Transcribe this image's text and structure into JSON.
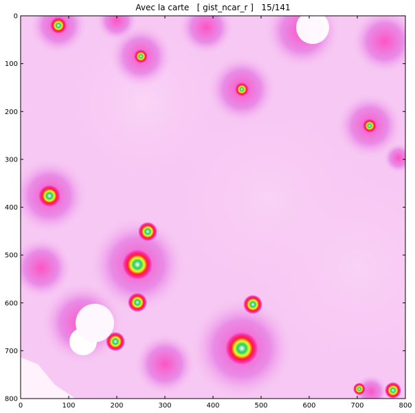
{
  "chart_data": {
    "type": "heatmap",
    "title": "Avec la carte   [ gist_ncar_r ]   15/141",
    "xlabel": "",
    "ylabel": "",
    "xlim": [
      0,
      800
    ],
    "ylim": [
      800,
      0
    ],
    "x_ticks": [
      0,
      100,
      200,
      300,
      400,
      500,
      600,
      700,
      800
    ],
    "y_ticks": [
      0,
      100,
      200,
      300,
      400,
      500,
      600,
      700,
      800
    ],
    "grid": false,
    "colormap": "gist_ncar_r",
    "colors": {
      "background_low": "#f7c8f3",
      "magenta": "#e04dd6",
      "pink": "#ff2fa8",
      "red": "#ff1a2f",
      "yellow": "#eeff22",
      "green": "#22cc66",
      "violet": "#c056f0",
      "white": "#ffffff"
    }
  }
}
